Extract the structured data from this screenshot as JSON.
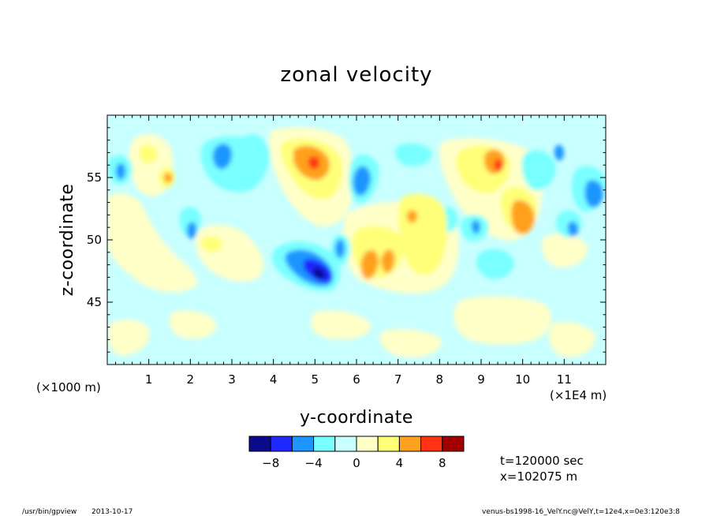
{
  "chart_data": {
    "type": "heatmap",
    "title": "zonal velocity",
    "xlabel": "y-coordinate",
    "ylabel": "z-coordinate",
    "x_unit_left": "(×1000 m)",
    "x_unit_right": "(×1E4 m)",
    "x_ticks": [
      1,
      2,
      3,
      4,
      5,
      6,
      7,
      8,
      9,
      10,
      11
    ],
    "x_range": [
      0,
      12
    ],
    "y_ticks": [
      45,
      50,
      55
    ],
    "y_range": [
      40,
      60
    ],
    "colorbar": {
      "levels": [
        -10,
        -8,
        -6,
        -4,
        -2,
        0,
        2,
        4,
        6,
        8,
        10
      ],
      "tick_labels": [
        -8,
        -4,
        0,
        4,
        8
      ],
      "colors": [
        "#0a0a8c",
        "#1e28ff",
        "#1e96ff",
        "#78ffff",
        "#c8ffff",
        "#ffffc8",
        "#ffff78",
        "#ffa01e",
        "#ff3214",
        "#a00000"
      ]
    },
    "regions": [
      {
        "y": 4.85,
        "z": 55.5,
        "value": 5
      },
      {
        "y": 4.95,
        "z": 56.2,
        "value": 7
      },
      {
        "y": 5.0,
        "z": 56.1,
        "value": 9
      },
      {
        "y": 4.8,
        "z": 47.5,
        "value": -5
      },
      {
        "y": 5.05,
        "z": 47.3,
        "value": -8
      },
      {
        "y": 3.6,
        "z": 53.0,
        "value": -3
      },
      {
        "y": 2.7,
        "z": 56.5,
        "value": -5
      },
      {
        "y": 5.9,
        "z": 54.5,
        "value": -5
      },
      {
        "y": 6.4,
        "z": 48.5,
        "value": 5
      },
      {
        "y": 6.8,
        "z": 48.0,
        "value": 5
      },
      {
        "y": 7.4,
        "z": 50.5,
        "value": 3
      },
      {
        "y": 9.4,
        "z": 55.0,
        "value": 3
      },
      {
        "y": 9.4,
        "z": 56.2,
        "value": 5
      },
      {
        "y": 9.45,
        "z": 55.7,
        "value": 7
      },
      {
        "y": 10.3,
        "z": 51.7,
        "value": 5
      },
      {
        "y": 11.7,
        "z": 53.7,
        "value": -5
      },
      {
        "y": 10.9,
        "z": 50.4,
        "value": -3
      },
      {
        "y": 1.7,
        "z": 53.5,
        "value": 3
      },
      {
        "y": 0.4,
        "z": 55.0,
        "value": -3
      },
      {
        "y": 8.3,
        "z": 52.0,
        "value": -3
      }
    ],
    "annotations": [
      "t=120000 sec",
      "x=102075 m"
    ]
  },
  "footer": {
    "left_path": "/usr/bin/gpview",
    "left_date": "2013-10-17",
    "right": "venus-bs1998-16_VelY.nc@VelY,t=12e4,x=0e3:120e3:8"
  }
}
